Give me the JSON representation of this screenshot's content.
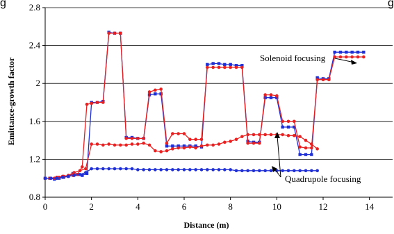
{
  "chart_data": {
    "type": "line",
    "title_fragment": "g",
    "title_fragment_right": "g",
    "xlabel": "Distance (m)",
    "ylabel": "Emittance-growth factor",
    "xlim": [
      0,
      15
    ],
    "ylim": [
      0.8,
      2.8
    ],
    "xticks": [
      "0",
      "2",
      "4",
      "6",
      "8",
      "10",
      "12",
      "14"
    ],
    "yticks": [
      "0.8",
      "1.2",
      "1.6",
      "2",
      "2.4",
      "2.8"
    ],
    "grid": "horizontal",
    "annotations": [
      {
        "text": "Solenoid focusing"
      },
      {
        "text": "Quadrupole focusing"
      }
    ],
    "series": [
      {
        "id": "solenoid-blue",
        "color": "#1f2fd6",
        "marker": "square",
        "x": [
          0,
          0.2,
          0.4,
          0.6,
          0.8,
          1.0,
          1.2,
          1.4,
          1.6,
          1.8,
          2.0,
          2.25,
          2.5,
          2.75,
          3.0,
          3.25,
          3.5,
          3.75,
          4.0,
          4.25,
          4.5,
          4.75,
          5.0,
          5.25,
          5.5,
          5.75,
          6.0,
          6.25,
          6.5,
          6.75,
          7.0,
          7.25,
          7.5,
          7.75,
          8.0,
          8.25,
          8.5,
          8.75,
          9.0,
          9.25,
          9.5,
          9.75,
          10.0,
          10.25,
          10.5,
          10.75,
          11.0,
          11.25,
          11.5,
          11.75,
          12.0,
          12.25,
          12.5,
          12.75,
          13.0,
          13.25,
          13.5,
          13.75
        ],
        "y": [
          1.0,
          1.0,
          0.99,
          1.0,
          1.01,
          1.02,
          1.05,
          1.04,
          1.03,
          1.05,
          1.8,
          1.8,
          1.81,
          2.54,
          2.53,
          2.53,
          1.43,
          1.43,
          1.42,
          1.42,
          1.88,
          1.89,
          1.89,
          1.34,
          1.34,
          1.34,
          1.34,
          1.34,
          1.34,
          1.33,
          2.2,
          2.21,
          2.21,
          2.2,
          2.2,
          2.19,
          2.19,
          1.39,
          1.38,
          1.38,
          1.85,
          1.85,
          1.85,
          1.54,
          1.54,
          1.54,
          1.25,
          1.25,
          1.25,
          2.06,
          2.05,
          2.05,
          2.33,
          2.33,
          2.33,
          2.33,
          2.33,
          2.33
        ]
      },
      {
        "id": "solenoid-red",
        "color": "#e82020",
        "marker": "circle",
        "x": [
          0,
          0.2,
          0.4,
          0.6,
          0.8,
          1.0,
          1.2,
          1.4,
          1.6,
          1.8,
          2.0,
          2.25,
          2.5,
          2.75,
          3.0,
          3.25,
          3.5,
          3.75,
          4.0,
          4.25,
          4.5,
          4.75,
          5.0,
          5.25,
          5.5,
          5.75,
          6.0,
          6.25,
          6.5,
          6.75,
          7.0,
          7.25,
          7.5,
          7.75,
          8.0,
          8.25,
          8.5,
          8.75,
          9.0,
          9.25,
          9.5,
          9.75,
          10.0,
          10.25,
          10.5,
          10.75,
          11.0,
          11.25,
          11.5,
          11.75,
          12.0,
          12.25,
          12.5,
          12.75,
          13.0,
          13.25,
          13.5,
          13.75
        ],
        "y": [
          1.0,
          1.0,
          1.0,
          1.01,
          1.02,
          1.02,
          1.03,
          1.04,
          1.12,
          1.78,
          1.79,
          1.8,
          1.8,
          2.53,
          2.53,
          2.53,
          1.42,
          1.42,
          1.42,
          1.42,
          1.91,
          1.93,
          1.94,
          1.37,
          1.47,
          1.47,
          1.47,
          1.41,
          1.41,
          1.41,
          2.17,
          2.17,
          2.17,
          2.17,
          2.17,
          2.17,
          2.17,
          1.37,
          1.37,
          1.37,
          1.88,
          1.88,
          1.87,
          1.6,
          1.6,
          1.6,
          1.33,
          1.32,
          1.32,
          2.04,
          2.04,
          2.04,
          2.28,
          2.28,
          2.28,
          2.28,
          2.28,
          2.28
        ]
      },
      {
        "id": "quadrupole-red",
        "color": "#e82020",
        "marker": "circle",
        "x": [
          0,
          0.25,
          0.5,
          0.75,
          1.0,
          1.25,
          1.5,
          1.75,
          2.0,
          2.25,
          2.5,
          2.75,
          3.0,
          3.25,
          3.5,
          3.75,
          4.0,
          4.25,
          4.5,
          4.75,
          5.0,
          5.25,
          5.5,
          5.75,
          6.0,
          6.25,
          6.5,
          6.75,
          7.0,
          7.25,
          7.5,
          7.75,
          8.0,
          8.25,
          8.5,
          8.75,
          9.0,
          9.25,
          9.5,
          9.75,
          10.0,
          10.25,
          10.5,
          10.75,
          11.0,
          11.25,
          11.5,
          11.75
        ],
        "y": [
          1.0,
          1.0,
          1.01,
          1.02,
          1.03,
          1.06,
          1.08,
          1.1,
          1.36,
          1.36,
          1.35,
          1.36,
          1.35,
          1.35,
          1.35,
          1.36,
          1.36,
          1.37,
          1.35,
          1.29,
          1.28,
          1.29,
          1.31,
          1.32,
          1.32,
          1.33,
          1.32,
          1.34,
          1.35,
          1.35,
          1.36,
          1.38,
          1.39,
          1.41,
          1.44,
          1.46,
          1.46,
          1.46,
          1.46,
          1.46,
          1.46,
          1.46,
          1.45,
          1.45,
          1.44,
          1.4,
          1.36,
          1.31
        ]
      },
      {
        "id": "quadrupole-blue",
        "color": "#1f2fd6",
        "marker": "circle",
        "x": [
          0,
          0.25,
          0.5,
          0.75,
          1.0,
          1.25,
          1.5,
          1.75,
          2.0,
          2.25,
          2.5,
          2.75,
          3.0,
          3.25,
          3.5,
          3.75,
          4.0,
          4.25,
          4.5,
          4.75,
          5.0,
          5.25,
          5.5,
          5.75,
          6.0,
          6.25,
          6.5,
          6.75,
          7.0,
          7.25,
          7.5,
          7.75,
          8.0,
          8.25,
          8.5,
          8.75,
          9.0,
          9.25,
          9.5,
          9.75,
          10.0,
          10.25,
          10.5,
          10.75,
          11.0,
          11.25,
          11.5,
          11.75
        ],
        "y": [
          1.0,
          1.0,
          1.0,
          1.01,
          1.02,
          1.03,
          1.04,
          1.06,
          1.1,
          1.1,
          1.1,
          1.1,
          1.1,
          1.1,
          1.1,
          1.1,
          1.09,
          1.09,
          1.09,
          1.09,
          1.09,
          1.09,
          1.09,
          1.09,
          1.09,
          1.09,
          1.09,
          1.09,
          1.09,
          1.09,
          1.09,
          1.09,
          1.09,
          1.08,
          1.08,
          1.08,
          1.08,
          1.08,
          1.08,
          1.08,
          1.08,
          1.08,
          1.08,
          1.08,
          1.08,
          1.08,
          1.08,
          1.08
        ]
      }
    ]
  }
}
